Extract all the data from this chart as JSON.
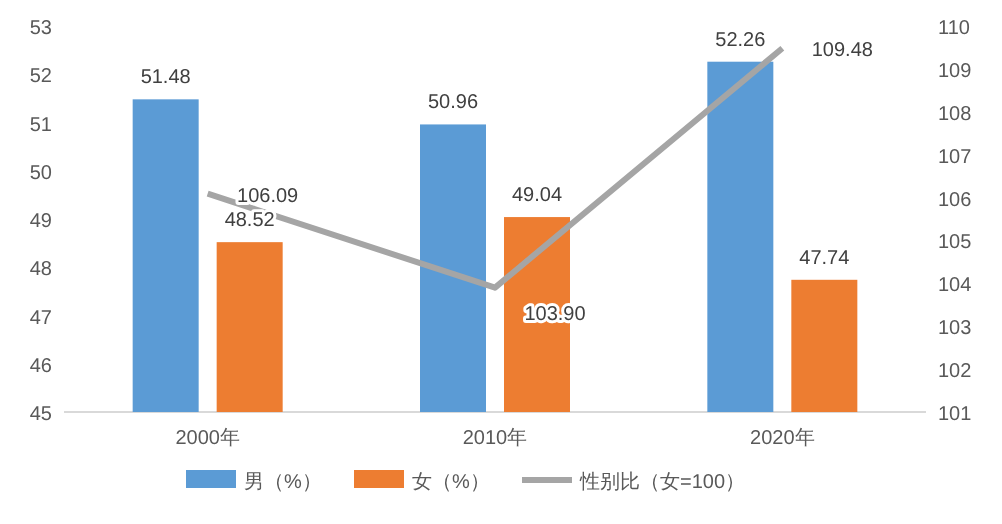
{
  "chart_data": {
    "type": "bar",
    "categories": [
      "2000年",
      "2010年",
      "2020年"
    ],
    "series": [
      {
        "name": "男（%）",
        "color": "#5b9bd5",
        "values": [
          51.48,
          50.96,
          52.26
        ]
      },
      {
        "name": "女（%）",
        "color": "#ed7d31",
        "values": [
          48.52,
          49.04,
          47.74
        ]
      },
      {
        "name": "性别比（女=100）",
        "type": "line",
        "axis": "y2",
        "color": "#a5a5a5",
        "values": [
          106.09,
          103.9,
          109.48
        ],
        "value_labels": [
          "106.09",
          "103.90",
          "109.48"
        ]
      }
    ],
    "ylim": [
      45,
      53
    ],
    "yticks": [
      45,
      46,
      47,
      48,
      49,
      50,
      51,
      52,
      53
    ],
    "y2lim": [
      101,
      110
    ],
    "y2ticks": [
      101,
      102,
      103,
      104,
      105,
      106,
      107,
      108,
      109,
      110
    ],
    "data_labels": true,
    "legend": "bottom",
    "grid": false
  }
}
